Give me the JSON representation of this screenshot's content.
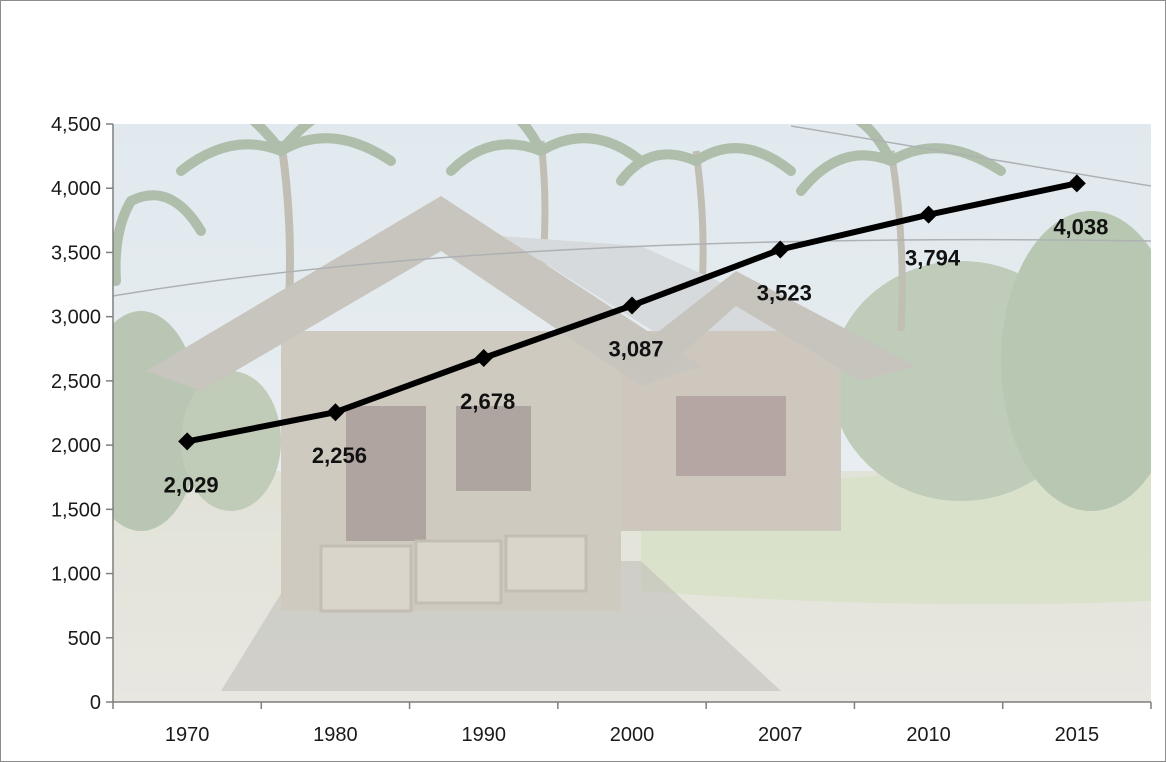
{
  "chart_data": {
    "type": "line",
    "title": "",
    "xlabel": "",
    "ylabel": "",
    "categories": [
      "1970",
      "1980",
      "1990",
      "2000",
      "2007",
      "2010",
      "2015"
    ],
    "series": [
      {
        "values": [
          2029,
          2256,
          2678,
          3087,
          3523,
          3794,
          4038
        ]
      }
    ],
    "data_labels": [
      "2,029",
      "2,256",
      "2,678",
      "3,087",
      "3,523",
      "3,794",
      "4,038"
    ],
    "ylim": [
      0,
      4500
    ],
    "yticks": [
      0,
      500,
      1000,
      1500,
      2000,
      2500,
      3000,
      3500,
      4000,
      4500
    ],
    "ytick_labels": [
      "0",
      "500",
      "1,000",
      "1,500",
      "2,000",
      "2,500",
      "3,000",
      "3,500",
      "4,000",
      "4,500"
    ],
    "grid": false,
    "legend": "none",
    "line_color": "#000000",
    "marker": "diamond",
    "plot_background": "photograph of a stone house with palm trees"
  }
}
